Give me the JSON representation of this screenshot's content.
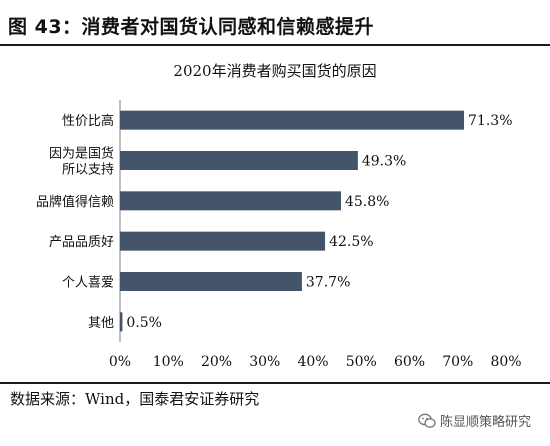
{
  "figure": {
    "title": "图 43：消费者对国货认同感和信赖感提升",
    "source": "数据来源：Wind，国泰君安证券研究",
    "watermark": "陈显顺策略研究",
    "watermark_icon": "wechat-icon"
  },
  "chart_data": {
    "type": "bar",
    "orientation": "horizontal",
    "title": "2020年消费者购买国货的原因",
    "categories": [
      [
        "性价比高"
      ],
      [
        "因为是国货",
        "所以支持"
      ],
      [
        "品牌值得信赖"
      ],
      [
        "产品品质好"
      ],
      [
        "个人喜爱"
      ],
      [
        "其他"
      ]
    ],
    "values": [
      71.3,
      49.3,
      45.8,
      42.5,
      37.7,
      0.5
    ],
    "value_labels": [
      "71.3%",
      "49.3%",
      "45.8%",
      "42.5%",
      "37.7%",
      "0.5%"
    ],
    "xlim": [
      0,
      80
    ],
    "xticks": [
      "0%",
      "10%",
      "20%",
      "30%",
      "40%",
      "50%",
      "60%",
      "70%",
      "80%"
    ],
    "bar_color": "#44546a",
    "grid": false,
    "legend": "none"
  }
}
